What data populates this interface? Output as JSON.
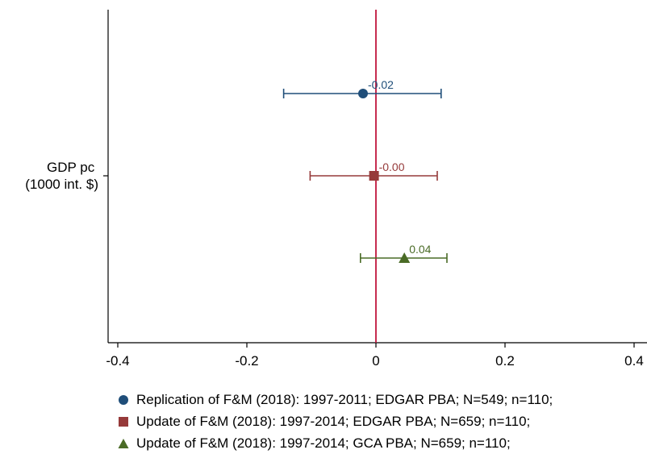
{
  "chart_data": {
    "type": "scatter",
    "subtype": "coefficient-plot",
    "title": "",
    "xlabel": "",
    "ylabel": "",
    "category_label": [
      "GDP pc",
      "(1000 int. $)"
    ],
    "xlim": [
      -0.42,
      0.42
    ],
    "x_ticks": [
      -0.4,
      -0.2,
      0,
      0.2,
      0.4
    ],
    "x_tick_labels": [
      "-0.4",
      "-0.2",
      "0",
      "0.2",
      "0.4"
    ],
    "reference_line": {
      "x": 0,
      "color": "#c0143c"
    },
    "grid": false,
    "legend_position": "bottom",
    "series": [
      {
        "name": "Replication of F&M (2018): 1997-2011; EDGAR PBA; N=549; n=110;",
        "estimate": -0.02,
        "ci_low": -0.143,
        "ci_high": 0.101,
        "label": "-0.02",
        "marker": "circle",
        "color": "#1f4e79"
      },
      {
        "name": "Update of F&M (2018): 1997-2014; EDGAR PBA; N=659; n=110;",
        "estimate": -0.003,
        "ci_low": -0.102,
        "ci_high": 0.095,
        "label": "-0.00",
        "marker": "square",
        "color": "#963a3a"
      },
      {
        "name": "Update of F&M (2018): 1997-2014; GCA PBA; N=659; n=110;",
        "estimate": 0.044,
        "ci_low": -0.024,
        "ci_high": 0.11,
        "label": "0.04",
        "marker": "triangle",
        "color": "#4a6b26"
      }
    ]
  }
}
